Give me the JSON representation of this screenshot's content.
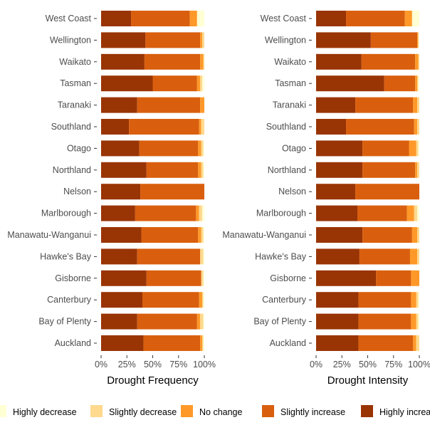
{
  "chart_data": [
    {
      "type": "bar",
      "orientation": "horizontal",
      "stacked": true,
      "xlabel": "Drought Frequency",
      "ylabel": "",
      "xlim": [
        0,
        100
      ],
      "ticks": [
        "0%",
        "25%",
        "50%",
        "75%",
        "100%"
      ],
      "categories": [
        "West Coast",
        "Wellington",
        "Waikato",
        "Tasman",
        "Taranaki",
        "Southland",
        "Otago",
        "Northland",
        "Nelson",
        "Marlborough",
        "Manawatu-Wanganui",
        "Hawke's Bay",
        "Gisborne",
        "Canterbury",
        "Bay of Plenty",
        "Auckland"
      ],
      "series": [
        {
          "name": "Highly increase",
          "color": "#993404",
          "values": [
            29,
            43,
            42,
            50,
            35,
            27,
            37,
            44,
            38,
            33,
            39,
            35,
            44,
            40,
            35,
            41
          ]
        },
        {
          "name": "Slightly increase",
          "color": "#D95F0E",
          "values": [
            57,
            53,
            54,
            43,
            61,
            68,
            57,
            50,
            62,
            59,
            55,
            61,
            53,
            55,
            58,
            55
          ]
        },
        {
          "name": "No change",
          "color": "#FE9929",
          "values": [
            7,
            2,
            3,
            3,
            4,
            2,
            3,
            3,
            0,
            3,
            3,
            0,
            0,
            3,
            3,
            2
          ]
        },
        {
          "name": "Slightly decrease",
          "color": "#FED98E",
          "values": [
            0,
            2,
            1,
            2,
            0,
            3,
            2,
            2,
            0,
            3,
            2,
            3,
            2,
            1,
            3,
            1
          ]
        },
        {
          "name": "Highly decrease",
          "color": "#FFFFD4",
          "values": [
            7,
            0,
            0,
            2,
            0,
            0,
            1,
            1,
            0,
            2,
            1,
            1,
            1,
            1,
            1,
            1
          ]
        }
      ]
    },
    {
      "type": "bar",
      "orientation": "horizontal",
      "stacked": true,
      "xlabel": "Drought Intensity",
      "ylabel": "",
      "xlim": [
        0,
        100
      ],
      "ticks": [
        "0%",
        "25%",
        "50%",
        "75%",
        "100%"
      ],
      "categories": [
        "West Coast",
        "Wellington",
        "Waikato",
        "Tasman",
        "Taranaki",
        "Southland",
        "Otago",
        "Northland",
        "Nelson",
        "Marlborough",
        "Manawatu-Wanganui",
        "Hawke's Bay",
        "Gisborne",
        "Canterbury",
        "Bay of Plenty",
        "Auckland"
      ],
      "series": [
        {
          "name": "Highly increase",
          "color": "#993404",
          "values": [
            29,
            53,
            44,
            66,
            38,
            29,
            45,
            45,
            38,
            40,
            45,
            42,
            58,
            41,
            41,
            41
          ]
        },
        {
          "name": "Slightly increase",
          "color": "#D95F0E",
          "values": [
            57,
            45,
            52,
            30,
            56,
            66,
            45,
            51,
            62,
            48,
            48,
            49,
            34,
            51,
            51,
            53
          ]
        },
        {
          "name": "No change",
          "color": "#FE9929",
          "values": [
            7,
            1,
            3,
            2,
            4,
            3,
            7,
            2,
            0,
            7,
            5,
            7,
            8,
            5,
            5,
            3
          ]
        },
        {
          "name": "Slightly decrease",
          "color": "#FED98E",
          "values": [
            0,
            0,
            1,
            1,
            2,
            2,
            2,
            2,
            0,
            3,
            2,
            2,
            0,
            2,
            2,
            3
          ]
        },
        {
          "name": "Highly decrease",
          "color": "#FFFFD4",
          "values": [
            7,
            1,
            0,
            1,
            0,
            0,
            1,
            0,
            0,
            2,
            0,
            0,
            0,
            1,
            1,
            0
          ]
        }
      ]
    }
  ],
  "legend": [
    {
      "name": "Highly decrease",
      "color": "#FFFFD4"
    },
    {
      "name": "Slightly decrease",
      "color": "#FED98E"
    },
    {
      "name": "No change",
      "color": "#FE9929"
    },
    {
      "name": "Slightly increase",
      "color": "#D95F0E"
    },
    {
      "name": "Highly increase",
      "color": "#993404"
    }
  ],
  "colors": {
    "tick_text": "#4D4D4D",
    "axis_title": "#000000",
    "tick_mark": "#333333"
  }
}
